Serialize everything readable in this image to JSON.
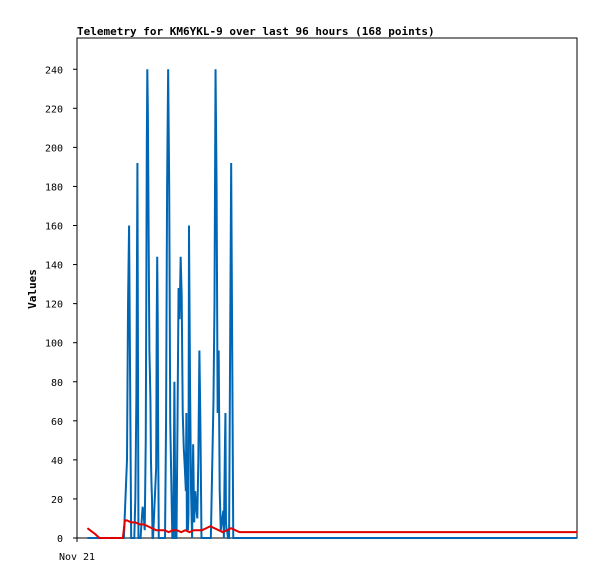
{
  "chart_data": {
    "type": "line",
    "title": "Telemetry for KM6YKL-9 over last 96 hours (168 points)",
    "ylabel": "Values",
    "xlabel": "",
    "x_tick_labels": [
      "Nov 21"
    ],
    "y_ticks": [
      0,
      20,
      40,
      60,
      80,
      100,
      120,
      140,
      160,
      180,
      200,
      220,
      240
    ],
    "ylim": [
      0,
      256
    ],
    "xlim": [
      0,
      96
    ],
    "grid": false,
    "series": [
      {
        "color": "#0066b3",
        "x": [
          2.0,
          9.0,
          9.6,
          9.8,
          10.0,
          10.2,
          10.4,
          11.0,
          11.2,
          11.4,
          11.6,
          11.8,
          12.2,
          12.4,
          12.6,
          12.8,
          13.0,
          13.2,
          13.3,
          13.4,
          13.5,
          13.6,
          13.7,
          13.8,
          13.9,
          14.0,
          14.1,
          14.2,
          14.3,
          14.4,
          14.5,
          14.6,
          15.2,
          15.3,
          15.4,
          15.5,
          15.6,
          15.7,
          15.8,
          16.9,
          17.1,
          17.3,
          17.5,
          17.7,
          17.9,
          18.3,
          18.5,
          18.7,
          18.9,
          19.1,
          19.3,
          19.5,
          19.7,
          19.9,
          20.1,
          20.3,
          20.5,
          20.7,
          20.9,
          21.0,
          21.1,
          21.2,
          21.3,
          21.4,
          21.5,
          21.7,
          21.9,
          22.1,
          22.3,
          22.5,
          22.7,
          22.9,
          23.1,
          23.3,
          23.5,
          23.7,
          23.9,
          24.1,
          24.3,
          24.5,
          24.7,
          24.9,
          25.1,
          25.3,
          25.5,
          25.7,
          26.2,
          26.4,
          26.6,
          26.8,
          27.0,
          27.2,
          27.4,
          27.6,
          28.1,
          28.2,
          28.3,
          28.4,
          28.5,
          28.6,
          28.7,
          28.8,
          29.0,
          29.2,
          29.4,
          29.6,
          29.8,
          30.0,
          30.2,
          30.4,
          30.6,
          30.8,
          31.0,
          35.0,
          96.0
        ],
        "values": [
          0,
          0,
          40,
          120,
          160,
          80,
          0,
          0,
          20,
          72,
          192,
          0,
          0,
          8,
          16,
          12,
          4,
          50,
          120,
          200,
          240,
          220,
          180,
          134,
          96,
          84,
          70,
          40,
          28,
          20,
          0,
          0,
          36,
          108,
          144,
          112,
          44,
          0,
          0,
          0,
          60,
          180,
          240,
          180,
          60,
          0,
          0,
          80,
          0,
          0,
          60,
          128,
          112,
          144,
          124,
          64,
          46,
          36,
          24,
          64,
          4,
          34,
          4,
          12,
          160,
          80,
          24,
          0,
          48,
          8,
          24,
          16,
          10,
          40,
          96,
          56,
          0,
          0,
          0,
          0,
          0,
          0,
          0,
          0,
          0,
          0,
          70,
          120,
          240,
          180,
          64,
          96,
          24,
          4,
          14,
          0,
          24,
          46,
          64,
          8,
          4,
          4,
          0,
          0,
          96,
          192,
          96,
          0,
          0,
          0,
          0,
          0,
          0,
          0,
          0
        ]
      },
      {
        "color": "#e00000",
        "x": [
          2.0,
          2.5,
          3.5,
          4.3,
          4.6,
          8.8,
          9.2,
          9.6,
          10.4,
          11.2,
          12.0,
          12.8,
          13.6,
          14.4,
          15.2,
          16.0,
          16.8,
          17.6,
          18.4,
          19.2,
          20.0,
          20.8,
          21.6,
          22.4,
          23.2,
          24.0,
          24.8,
          25.6,
          26.4,
          27.2,
          28.0,
          28.8,
          29.6,
          30.4,
          31.2,
          32.0,
          40.0,
          60.0,
          80.0,
          96.0
        ],
        "values": [
          5,
          4,
          2,
          0,
          0,
          0,
          9,
          9,
          8,
          8,
          7,
          7,
          6,
          5,
          4,
          4,
          4,
          3,
          4,
          4,
          3,
          4,
          3,
          4,
          4,
          4,
          5,
          6,
          5,
          4,
          3,
          4,
          5,
          4,
          3,
          3,
          3,
          3,
          3,
          3
        ]
      }
    ]
  }
}
